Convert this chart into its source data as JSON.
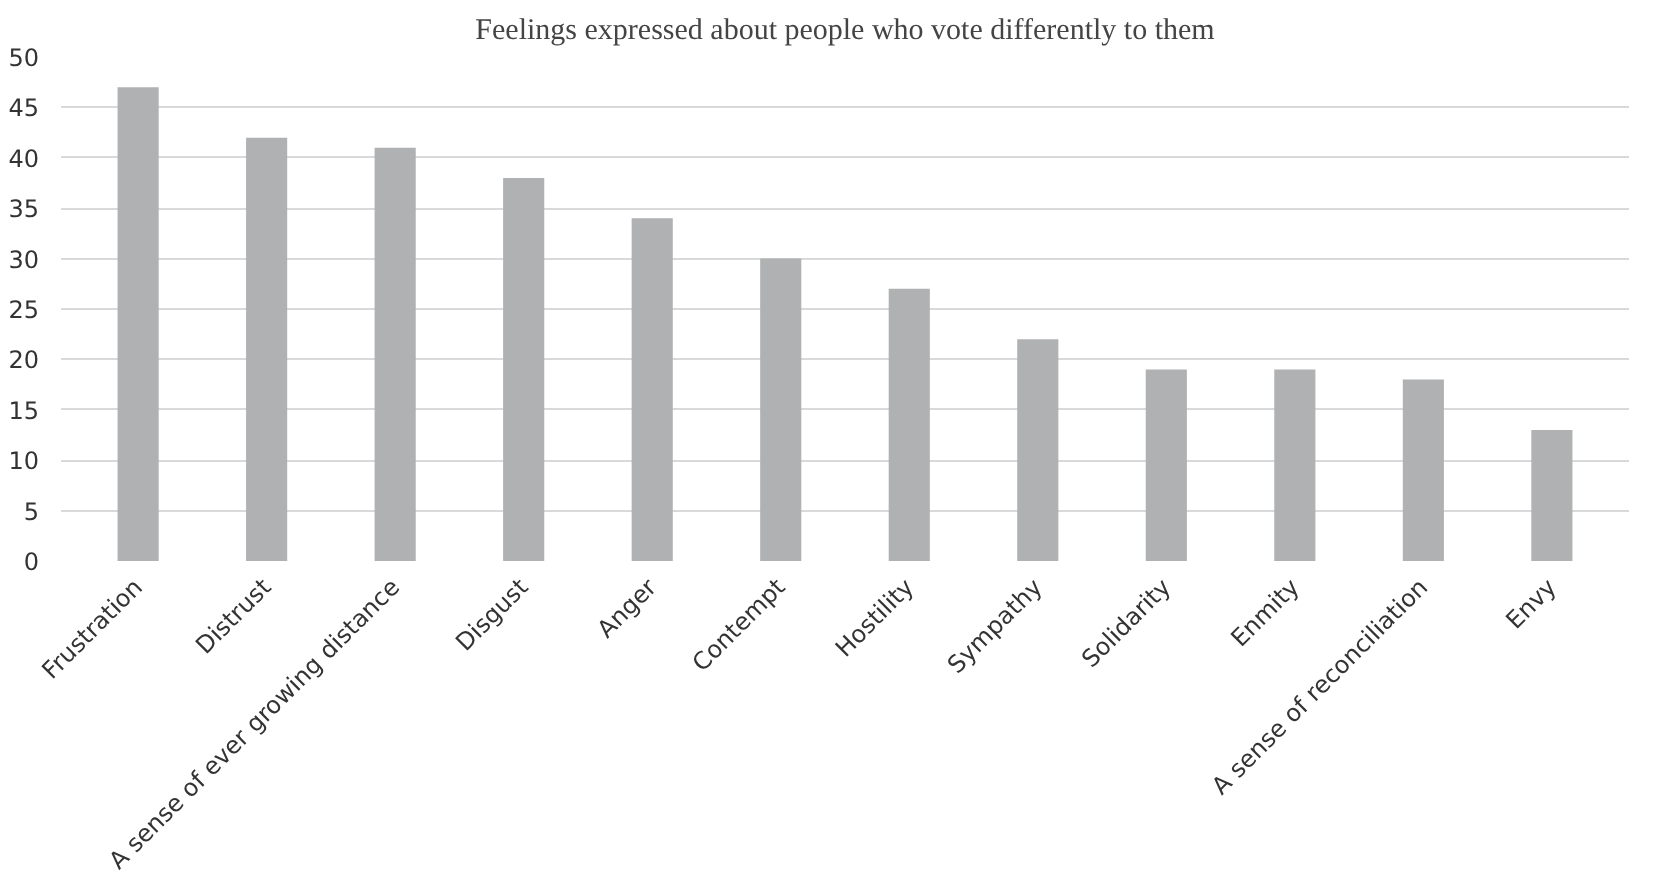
{
  "chart_data": {
    "type": "bar",
    "title": "Feelings expressed about people who vote differently to them",
    "categories": [
      "Frustration",
      "Distrust",
      "A sense of ever growing distance",
      "Disgust",
      "Anger",
      "Contempt",
      "Hostility",
      "Sympathy",
      "Solidarity",
      "Enmity",
      "A sense of reconciliation",
      "Envy"
    ],
    "values": [
      47,
      42,
      41,
      38,
      34,
      30,
      27,
      22,
      19,
      19,
      18,
      13
    ],
    "color": "#b0b1b3",
    "ylim": [
      0,
      50
    ],
    "yticks": [
      0,
      5,
      10,
      15,
      20,
      25,
      30,
      35,
      40,
      45,
      50
    ],
    "grid": "y"
  }
}
